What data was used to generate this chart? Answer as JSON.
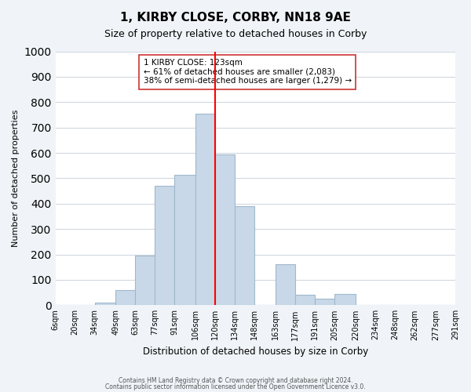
{
  "title": "1, KIRBY CLOSE, CORBY, NN18 9AE",
  "subtitle": "Size of property relative to detached houses in Corby",
  "xlabel": "Distribution of detached houses by size in Corby",
  "ylabel": "Number of detached properties",
  "bar_color": "#c8d8e8",
  "bar_edge_color": "#a0b8cc",
  "bin_labels": [
    "6sqm",
    "20sqm",
    "34sqm",
    "49sqm",
    "63sqm",
    "77sqm",
    "91sqm",
    "106sqm",
    "120sqm",
    "134sqm",
    "148sqm",
    "163sqm",
    "177sqm",
    "191sqm",
    "205sqm",
    "220sqm",
    "234sqm",
    "248sqm",
    "262sqm",
    "277sqm",
    "291sqm"
  ],
  "bin_edges": [
    6,
    20,
    34,
    49,
    63,
    77,
    91,
    106,
    120,
    134,
    148,
    163,
    177,
    191,
    205,
    220,
    234,
    248,
    262,
    277,
    291
  ],
  "bar_heights": [
    0,
    0,
    10,
    60,
    195,
    470,
    515,
    755,
    595,
    390,
    0,
    160,
    40,
    25,
    45,
    0,
    0,
    0,
    0,
    0
  ],
  "red_line_x": 120,
  "ylim": [
    0,
    1000
  ],
  "yticks": [
    0,
    100,
    200,
    300,
    400,
    500,
    600,
    700,
    800,
    900,
    1000
  ],
  "annotation_title": "1 KIRBY CLOSE: 123sqm",
  "annotation_line1": "← 61% of detached houses are smaller (2,083)",
  "annotation_line2": "38% of semi-detached houses are larger (1,279) →",
  "footer1": "Contains HM Land Registry data © Crown copyright and database right 2024.",
  "footer2": "Contains public sector information licensed under the Open Government Licence v3.0.",
  "background_color": "#f0f4f8",
  "plot_bg_color": "#ffffff",
  "grid_color": "#d0d8e0"
}
